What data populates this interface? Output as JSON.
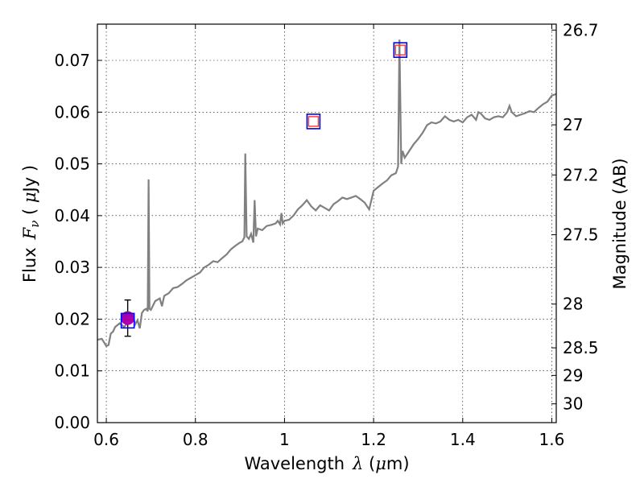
{
  "chart_data": {
    "type": "line",
    "title": "",
    "xlabel": "Wavelength",
    "xlabel_symbol": "λ",
    "xlabel_unit_open": " (",
    "xlabel_unit_mu": "μ",
    "xlabel_unit_rest": "m)",
    "ylabel": "Flux",
    "ylabel_symbol": "F",
    "ylabel_subscript": "ν",
    "ylabel_unit_open": "  ( ",
    "ylabel_unit_mu": "μ",
    "ylabel_unit_rest": "Jy )",
    "y2label": "Magnitude (AB)",
    "xlim": [
      0.58,
      1.61
    ],
    "ylim": [
      0.0,
      0.077
    ],
    "grid": true,
    "x_ticks": [
      0.6,
      0.8,
      1.0,
      1.2,
      1.4,
      1.6
    ],
    "x_tick_labels": [
      "0.6",
      "0.8",
      "1",
      "1.2",
      "1.4",
      "1.6"
    ],
    "y_ticks": [
      0.0,
      0.01,
      0.02,
      0.03,
      0.04,
      0.05,
      0.06,
      0.07
    ],
    "y_tick_labels": [
      "0.00",
      "0.01",
      "0.02",
      "0.03",
      "0.04",
      "0.05",
      "0.06",
      "0.07"
    ],
    "mag_ticks": [
      26.7,
      27,
      27.2,
      27.5,
      28,
      28.5,
      29,
      30
    ],
    "mag_tick_labels": [
      "26.7",
      "27",
      "27.2",
      "27.5",
      "28",
      "28.5",
      "29",
      "30"
    ],
    "series": [
      {
        "type": "line",
        "color": "#808080",
        "x": [
          0.58,
          0.59,
          0.6,
          0.605,
          0.61,
          0.615,
          0.62,
          0.63,
          0.64,
          0.65,
          0.66,
          0.665,
          0.67,
          0.675,
          0.68,
          0.685,
          0.69,
          0.693,
          0.695,
          0.697,
          0.7,
          0.71,
          0.72,
          0.725,
          0.73,
          0.74,
          0.75,
          0.76,
          0.77,
          0.78,
          0.79,
          0.8,
          0.81,
          0.82,
          0.83,
          0.84,
          0.85,
          0.86,
          0.87,
          0.88,
          0.89,
          0.9,
          0.905,
          0.91,
          0.912,
          0.915,
          0.92,
          0.925,
          0.93,
          0.933,
          0.936,
          0.94,
          0.95,
          0.96,
          0.97,
          0.98,
          0.985,
          0.99,
          0.993,
          0.996,
          1.0,
          1.01,
          1.02,
          1.03,
          1.04,
          1.05,
          1.06,
          1.07,
          1.08,
          1.09,
          1.1,
          1.11,
          1.12,
          1.13,
          1.14,
          1.15,
          1.16,
          1.17,
          1.18,
          1.19,
          1.2,
          1.21,
          1.22,
          1.23,
          1.24,
          1.25,
          1.255,
          1.258,
          1.262,
          1.265,
          1.27,
          1.28,
          1.29,
          1.3,
          1.31,
          1.32,
          1.33,
          1.34,
          1.35,
          1.36,
          1.37,
          1.38,
          1.39,
          1.4,
          1.41,
          1.42,
          1.43,
          1.435,
          1.44,
          1.45,
          1.46,
          1.47,
          1.48,
          1.49,
          1.495,
          1.5,
          1.505,
          1.51,
          1.52,
          1.53,
          1.54,
          1.55,
          1.56,
          1.57,
          1.58,
          1.59,
          1.6,
          1.61
        ],
        "y": [
          0.016,
          0.0162,
          0.0148,
          0.015,
          0.0172,
          0.0176,
          0.0185,
          0.0192,
          0.0185,
          0.0195,
          0.0205,
          0.019,
          0.0198,
          0.0182,
          0.0212,
          0.0218,
          0.022,
          0.0215,
          0.047,
          0.022,
          0.0218,
          0.0235,
          0.024,
          0.0225,
          0.0245,
          0.025,
          0.026,
          0.0262,
          0.0268,
          0.0275,
          0.028,
          0.0285,
          0.029,
          0.03,
          0.0305,
          0.0312,
          0.031,
          0.0318,
          0.0325,
          0.0335,
          0.0342,
          0.0348,
          0.035,
          0.0358,
          0.052,
          0.036,
          0.0355,
          0.0365,
          0.0348,
          0.043,
          0.036,
          0.0375,
          0.0372,
          0.038,
          0.0382,
          0.0385,
          0.039,
          0.0383,
          0.0405,
          0.0385,
          0.039,
          0.0392,
          0.04,
          0.0412,
          0.042,
          0.043,
          0.0418,
          0.041,
          0.042,
          0.0415,
          0.041,
          0.0422,
          0.0428,
          0.0435,
          0.0432,
          0.0435,
          0.0438,
          0.0432,
          0.0425,
          0.0412,
          0.0448,
          0.0455,
          0.0462,
          0.0468,
          0.0478,
          0.0482,
          0.0495,
          0.074,
          0.05,
          0.0525,
          0.0512,
          0.0525,
          0.0538,
          0.0548,
          0.056,
          0.0575,
          0.058,
          0.0578,
          0.0582,
          0.0592,
          0.0585,
          0.0582,
          0.0585,
          0.058,
          0.059,
          0.0595,
          0.0585,
          0.06,
          0.0598,
          0.0588,
          0.0585,
          0.059,
          0.0592,
          0.059,
          0.0595,
          0.06,
          0.0612,
          0.06,
          0.0592,
          0.0595,
          0.0598,
          0.0602,
          0.06,
          0.0608,
          0.0615,
          0.062,
          0.0632,
          0.0635
        ]
      },
      {
        "type": "scatter",
        "marker": "circle",
        "color": "#aa00aa",
        "x": [
          0.648
        ],
        "y": [
          0.0202
        ],
        "yerr": [
          0.0035
        ]
      },
      {
        "type": "scatter",
        "marker": "square-open",
        "color": "#0000ff",
        "x": [
          0.648,
          1.065,
          1.26
        ],
        "y": [
          0.0197,
          0.0582,
          0.072
        ]
      },
      {
        "type": "scatter",
        "marker": "square-open",
        "color": "#ff3333",
        "x": [
          1.065,
          1.26
        ],
        "y": [
          0.0582,
          0.072
        ]
      }
    ]
  }
}
